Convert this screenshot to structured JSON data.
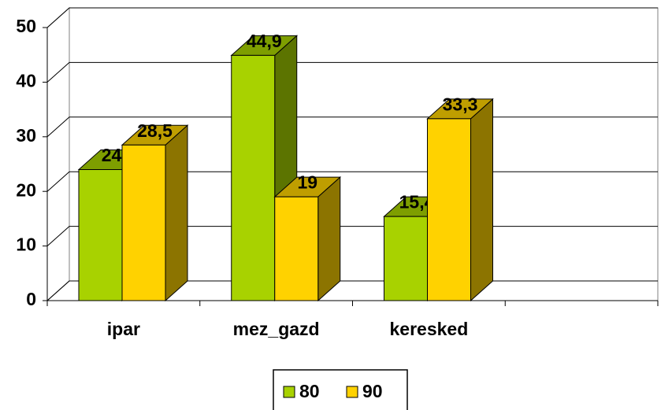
{
  "chart_data": {
    "type": "bar3d",
    "categories": [
      "ipar",
      "mez_gazd",
      "keresked",
      null
    ],
    "series": [
      {
        "name": "80",
        "color": "#a8d200",
        "values": [
          24,
          44.9,
          15.4,
          null
        ],
        "value_labels": [
          "24",
          "44,9",
          "15,4",
          null
        ]
      },
      {
        "name": "90",
        "color": "#ffd200",
        "values": [
          28.5,
          19,
          33.3,
          null
        ],
        "value_labels": [
          "28,5",
          "19",
          "33,3",
          null
        ]
      }
    ],
    "ylim": [
      0,
      50
    ],
    "yticks": [
      0,
      10,
      20,
      30,
      40,
      50
    ],
    "grid": true,
    "legend": "bottom"
  }
}
